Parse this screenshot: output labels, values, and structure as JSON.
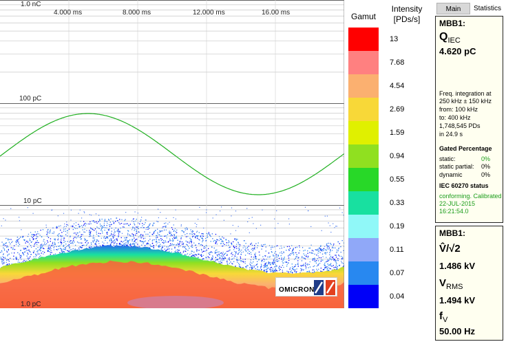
{
  "plot": {
    "y_labels": [
      "1.0 nC",
      "100 pC",
      "10 pC",
      "1.0 pC"
    ],
    "x_labels": [
      "4.000 ms",
      "8.000 ms",
      "12.000 ms",
      "16.00 ms"
    ]
  },
  "legend": {
    "gamut_title": "Gamut",
    "intensity_title_line1": "Intensity",
    "intensity_title_line2": "[PDs/s]",
    "values": [
      "13",
      "7.68",
      "4.54",
      "2.69",
      "1.59",
      "0.94",
      "0.55",
      "0.33",
      "0.19",
      "0.11",
      "0.07",
      "0.04"
    ],
    "colors": [
      "#ff0000",
      "#ff8080",
      "#fbb070",
      "#f8d838",
      "#e0f000",
      "#90e020",
      "#28d828",
      "#18e0a0",
      "#90f8f8",
      "#90a8f8",
      "#2888f0",
      "#0000f8"
    ]
  },
  "tabs": {
    "main": "Main",
    "statistics": "Statistics"
  },
  "panel1": {
    "header": "MBB1:",
    "q_symbol": "Q",
    "q_sub": "IEC",
    "q_value": "4.620 pC",
    "freq_line1": "Freq. integration at",
    "freq_line2": "250 kHz ± 150 kHz",
    "freq_line3": "from:  100 kHz",
    "freq_line4": "to:     400 kHz",
    "freq_line5": "1,748,545 PDs",
    "freq_line6": "in 24.9 s",
    "gated_title": "Gated Percentage",
    "static_label": "static:",
    "static_value": "0%",
    "static_partial_label": "static partial:",
    "static_partial_value": "0%",
    "dynamic_label": "dynamic",
    "dynamic_value": "0%",
    "iec_title": "IEC 60270 status",
    "iec_line1": "conforming. Calibrated",
    "iec_line2": "22-JUL-2015",
    "iec_line3": "16:21:54.0"
  },
  "panel2": {
    "header": "MBB1:",
    "v_label": "V̂/√2",
    "v_value": "1.486 kV",
    "vrms_symbol": "V",
    "vrms_sub": "RMS",
    "vrms_value": "1.494 kV",
    "fv_symbol": "f",
    "fv_sub": "V",
    "fv_value": "50.00 Hz"
  },
  "logo": {
    "text": "OMICRON"
  }
}
